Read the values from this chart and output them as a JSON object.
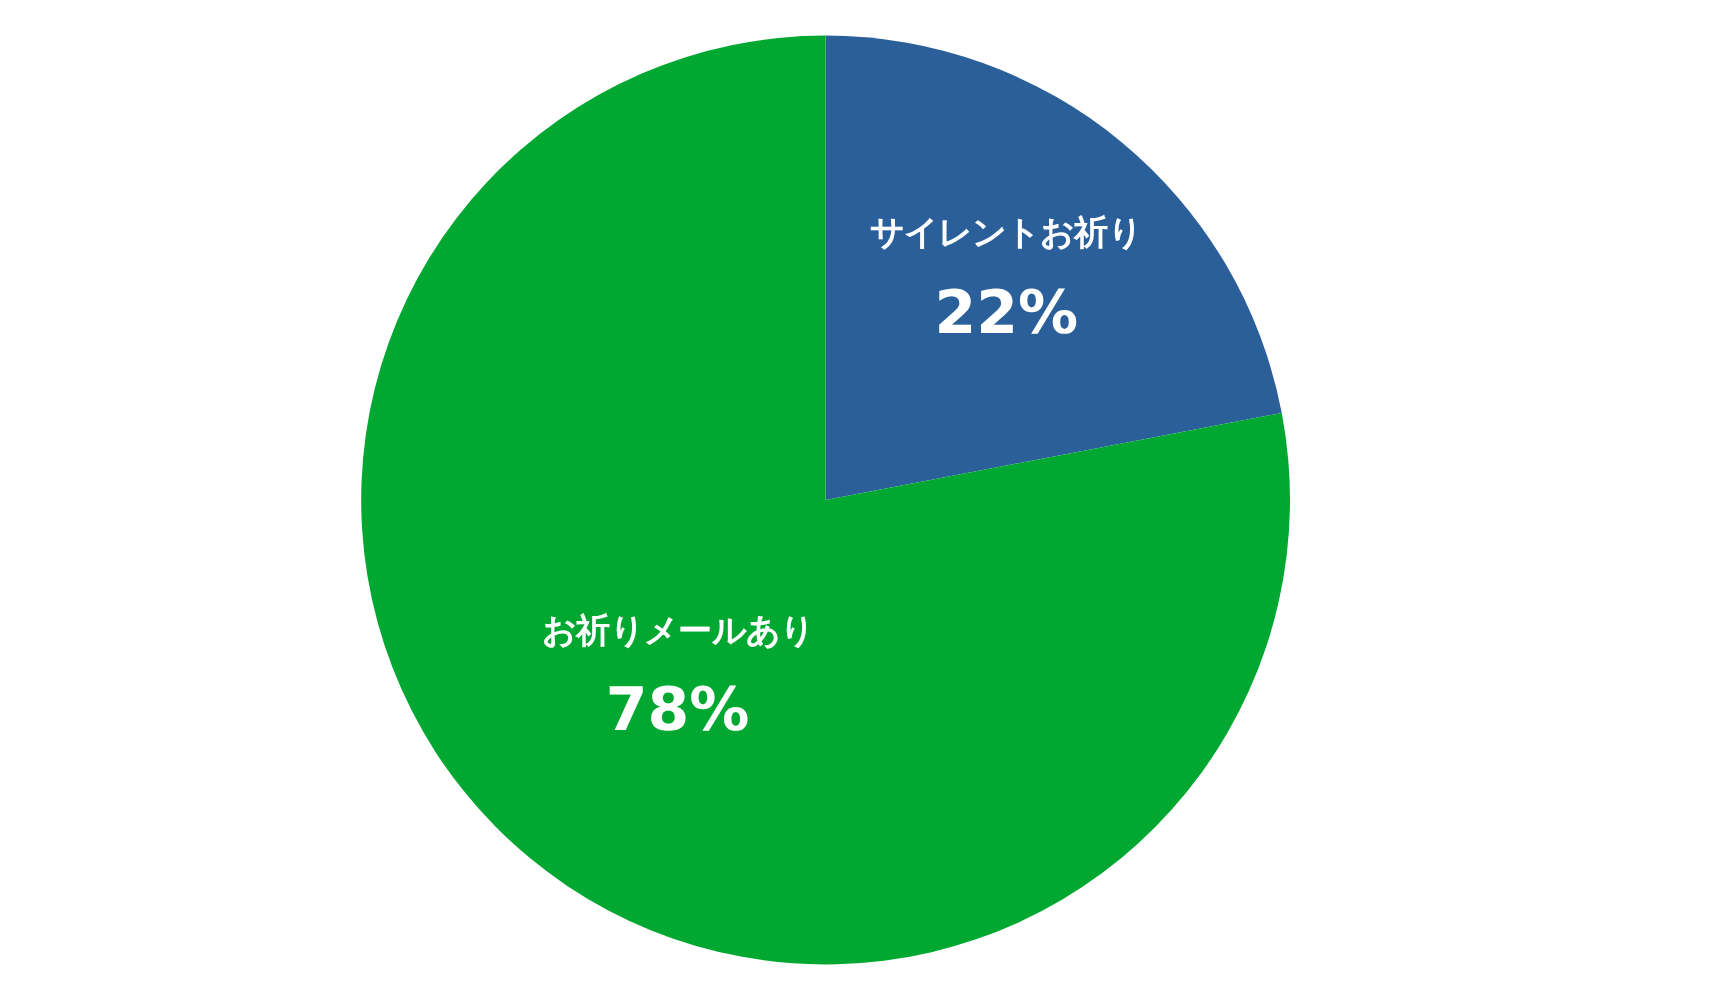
{
  "chart_data": {
    "type": "pie",
    "categories": [
      "サイレントお祈り",
      "お祈りメールあり"
    ],
    "values": [
      22,
      78
    ],
    "colors": [
      "#2b5f99",
      "#00a832"
    ],
    "value_labels": [
      "22%",
      "78%"
    ],
    "legend": false
  }
}
